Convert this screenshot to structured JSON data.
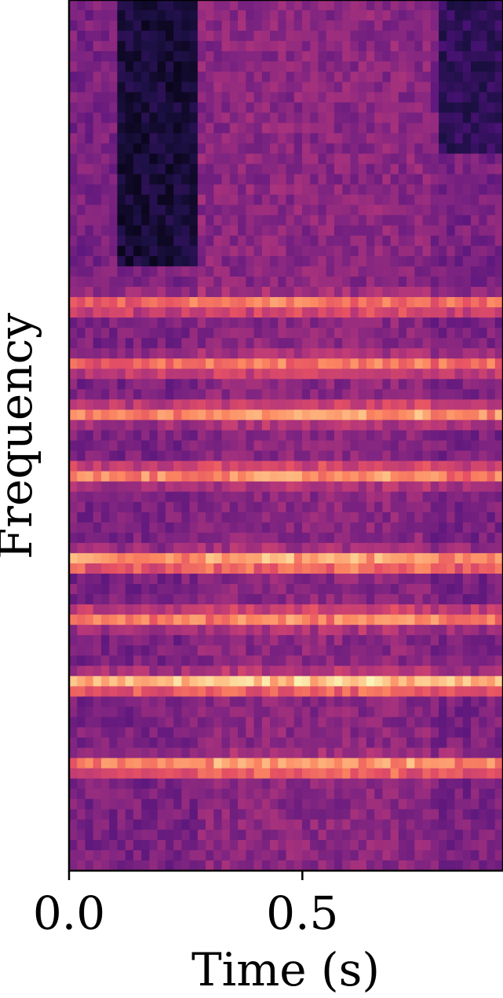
{
  "chart_data": {
    "type": "heatmap",
    "xlabel": "Time (s)",
    "ylabel": "Frequency",
    "xlim": [
      0.0,
      0.93
    ],
    "x_ticks": [
      {
        "value": 0.0,
        "label": "0.0"
      },
      {
        "value": 0.5,
        "label": "0.5"
      }
    ],
    "y_ticks": [],
    "colormap": "magma",
    "n_time_bins": 54,
    "n_freq_bins": 85,
    "dark_regions": [
      {
        "t0": 0.1,
        "t1": 0.27,
        "f0": 0.7,
        "f1": 1.0,
        "level": 0.05
      },
      {
        "t0": 0.8,
        "t1": 0.93,
        "f0": 0.82,
        "f1": 1.0,
        "level": 0.12
      }
    ],
    "bright_bands": [
      {
        "freq": 0.65,
        "strength": 0.62
      },
      {
        "freq": 0.58,
        "strength": 0.58
      },
      {
        "freq": 0.525,
        "strength": 0.72
      },
      {
        "freq": 0.455,
        "strength": 0.7
      },
      {
        "freq": 0.355,
        "strength": 0.85
      },
      {
        "freq": 0.29,
        "strength": 0.66
      },
      {
        "freq": 0.215,
        "strength": 0.95
      },
      {
        "freq": 0.12,
        "strength": 0.78
      }
    ]
  }
}
